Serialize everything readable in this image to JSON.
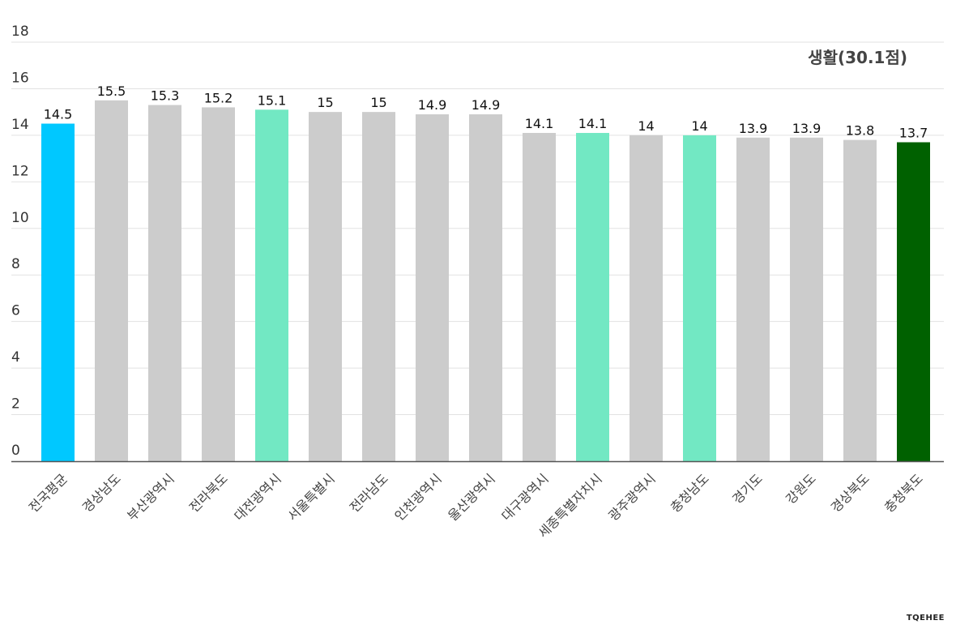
{
  "chart_data": {
    "type": "bar",
    "title": "생활(30.1점)",
    "categories": [
      "전국평균",
      "경상남도",
      "부산광역시",
      "전라북도",
      "대전광역시",
      "서울특별시",
      "전라남도",
      "인천광역시",
      "울산광역시",
      "대구광역시",
      "세종특별자치시",
      "광주광역시",
      "충청남도",
      "경기도",
      "강원도",
      "경상북도",
      "충청북도"
    ],
    "values": [
      14.5,
      15.5,
      15.3,
      15.2,
      15.1,
      15,
      15,
      14.9,
      14.9,
      14.1,
      14.1,
      14,
      14,
      13.9,
      13.9,
      13.8,
      13.7
    ],
    "data_labels": [
      "14.5",
      "15.5",
      "15.3",
      "15.2",
      "15.1",
      "15",
      "15",
      "14.9",
      "14.9",
      "14.1",
      "14.1",
      "14",
      "14",
      "13.9",
      "13.9",
      "13.8",
      "13.7"
    ],
    "bar_colors": [
      "#00c8ff",
      "#cccccc",
      "#cccccc",
      "#cccccc",
      "#72e8c3",
      "#cccccc",
      "#cccccc",
      "#cccccc",
      "#cccccc",
      "#cccccc",
      "#72e8c3",
      "#cccccc",
      "#72e8c3",
      "#cccccc",
      "#cccccc",
      "#cccccc",
      "#006100"
    ],
    "ylim": [
      0,
      18
    ],
    "yticks": [
      0,
      2,
      4,
      6,
      8,
      10,
      12,
      14,
      16,
      18
    ],
    "grid": true,
    "xlabel": "",
    "ylabel": ""
  },
  "watermark": "TQEHEE"
}
